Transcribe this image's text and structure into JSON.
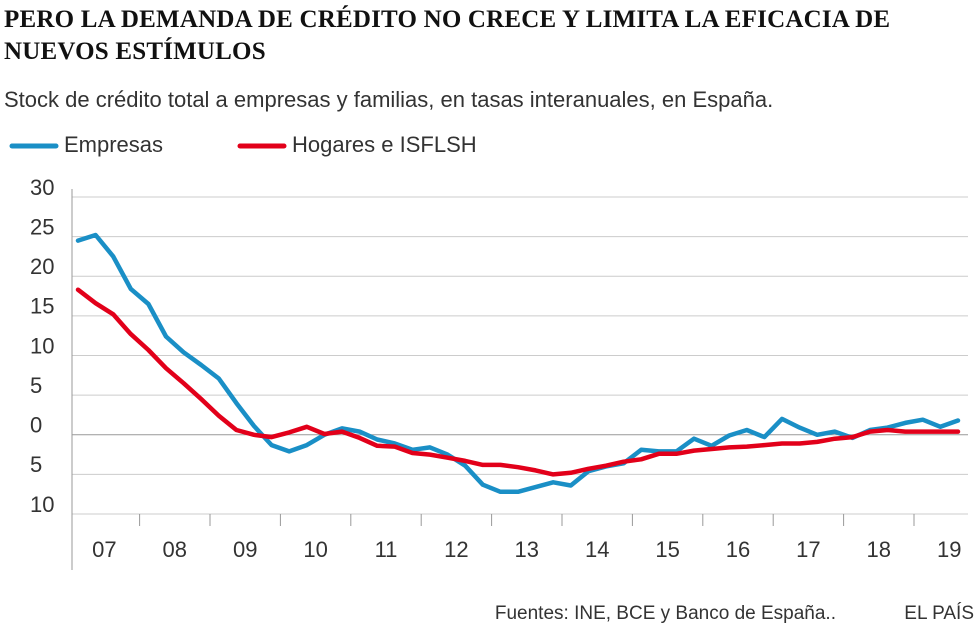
{
  "chart_data": {
    "type": "line",
    "title": "PERO LA DEMANDA DE CRÉDITO NO CRECE Y LIMITA LA EFICACIA DE NUEVOS ESTÍMULOS",
    "subtitle": "Stock de crédito total a empresas y familias, en tasas interanuales, en España.",
    "source": "Fuentes: INE, BCE y Banco de España..",
    "credit": "EL PAÍS",
    "categories": [
      null,
      "07",
      null,
      null,
      null,
      "08",
      null,
      null,
      null,
      "09",
      null,
      null,
      null,
      "10",
      null,
      null,
      null,
      "11",
      null,
      null,
      null,
      "12",
      null,
      null,
      null,
      "13",
      null,
      null,
      null,
      "14",
      null,
      null,
      null,
      "15",
      null,
      null,
      null,
      "16",
      null,
      null,
      null,
      "17",
      null,
      null,
      null,
      "18",
      null,
      null,
      null,
      "19",
      null
    ],
    "series": [
      {
        "name": "Empresas",
        "color": "#1a8fc6",
        "values": [
          24.5,
          25.2,
          22.5,
          18.4,
          16.5,
          12.4,
          10.4,
          8.8,
          7.1,
          4.0,
          1.1,
          -1.3,
          -2.1,
          -1.3,
          0.0,
          0.8,
          0.4,
          -0.6,
          -1.1,
          -1.9,
          -1.6,
          -2.5,
          -3.9,
          -6.3,
          -7.2,
          -7.2,
          -6.6,
          -6.0,
          -6.4,
          -4.6,
          -4.0,
          -3.6,
          -1.9,
          -2.1,
          -2.1,
          -0.5,
          -1.4,
          -0.1,
          0.6,
          -0.3,
          2.0,
          0.9,
          0.0,
          0.4,
          -0.4,
          0.6,
          0.9,
          1.5,
          1.9,
          1.0,
          1.8
        ]
      },
      {
        "name": "Hogares e ISFLSH",
        "color": "#e2001a",
        "values": [
          18.3,
          16.6,
          15.2,
          12.7,
          10.7,
          8.4,
          6.5,
          4.5,
          2.4,
          0.6,
          0.0,
          -0.3,
          0.3,
          1.0,
          0.1,
          0.4,
          -0.4,
          -1.4,
          -1.5,
          -2.3,
          -2.5,
          -2.9,
          -3.3,
          -3.8,
          -3.8,
          -4.1,
          -4.5,
          -5.0,
          -4.8,
          -4.3,
          -3.9,
          -3.4,
          -3.1,
          -2.4,
          -2.4,
          -2.0,
          -1.8,
          -1.6,
          -1.5,
          -1.3,
          -1.1,
          -1.1,
          -0.9,
          -0.5,
          -0.3,
          0.4,
          0.6,
          0.4,
          0.4,
          0.4,
          0.4
        ]
      }
    ],
    "ylim": [
      -10,
      30
    ],
    "yticks": [
      30,
      25,
      20,
      15,
      10,
      5,
      0,
      {
        "value": -5,
        "label": "5"
      },
      {
        "value": -10,
        "label": "10"
      }
    ],
    "grid": true
  }
}
